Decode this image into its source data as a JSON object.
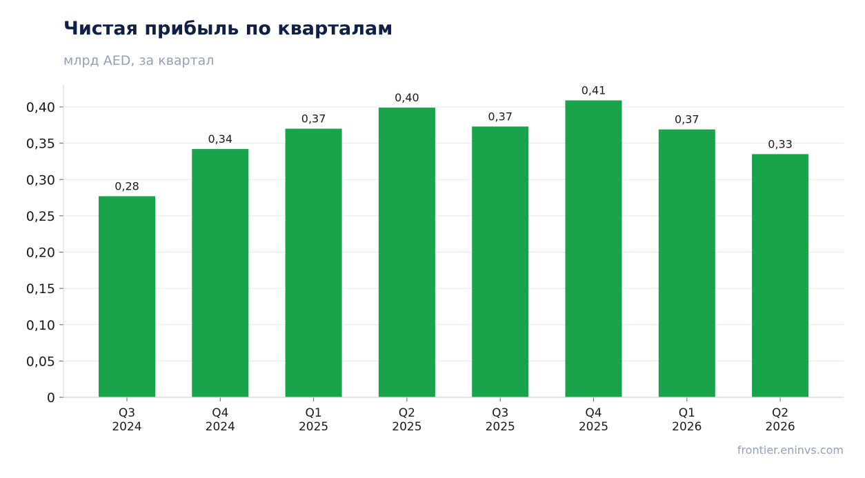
{
  "title": "Чистая прибыль по кварталам",
  "subtitle": "млрд AED, за квартал",
  "source": "frontier.eninvs.com",
  "colors": {
    "bar": "#19a34a",
    "grid": "#e3e7ee",
    "axis": "#cfd4dc",
    "title": "#0f1f45",
    "muted": "#94a0b4",
    "text": "#1a1a1a"
  },
  "chart_data": {
    "type": "bar",
    "categories": [
      [
        "Q3",
        "2024"
      ],
      [
        "Q4",
        "2024"
      ],
      [
        "Q1",
        "2025"
      ],
      [
        "Q2",
        "2025"
      ],
      [
        "Q3",
        "2025"
      ],
      [
        "Q4",
        "2025"
      ],
      [
        "Q1",
        "2026"
      ],
      [
        "Q2",
        "2026"
      ]
    ],
    "values": [
      0.277,
      0.342,
      0.37,
      0.399,
      0.373,
      0.409,
      0.369,
      0.335
    ],
    "value_labels": [
      "0,28",
      "0,34",
      "0,37",
      "0,40",
      "0,37",
      "0,41",
      "0,37",
      "0,33"
    ],
    "yticks": [
      0,
      0.05,
      0.1,
      0.15,
      0.2,
      0.25,
      0.3,
      0.35,
      0.4
    ],
    "ytick_labels": [
      "0",
      "0,05",
      "0,10",
      "0,15",
      "0,20",
      "0,25",
      "0,30",
      "0,35",
      "0,40"
    ],
    "ylim": [
      0,
      0.43
    ],
    "grid": "horizontal",
    "legend": "none",
    "xlabel": "",
    "ylabel": ""
  }
}
